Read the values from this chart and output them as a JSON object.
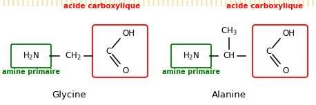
{
  "background": "#ffffff",
  "green_color": "#008000",
  "red_color": "#ff0000",
  "black_color": "#000000",
  "title_glycine": "Glycine",
  "title_alanine": "Alanine",
  "label_amine": "amine primaire",
  "label_acid": "acide carboxylique",
  "fig_width": 4.58,
  "fig_height": 1.52,
  "dpi": 100
}
